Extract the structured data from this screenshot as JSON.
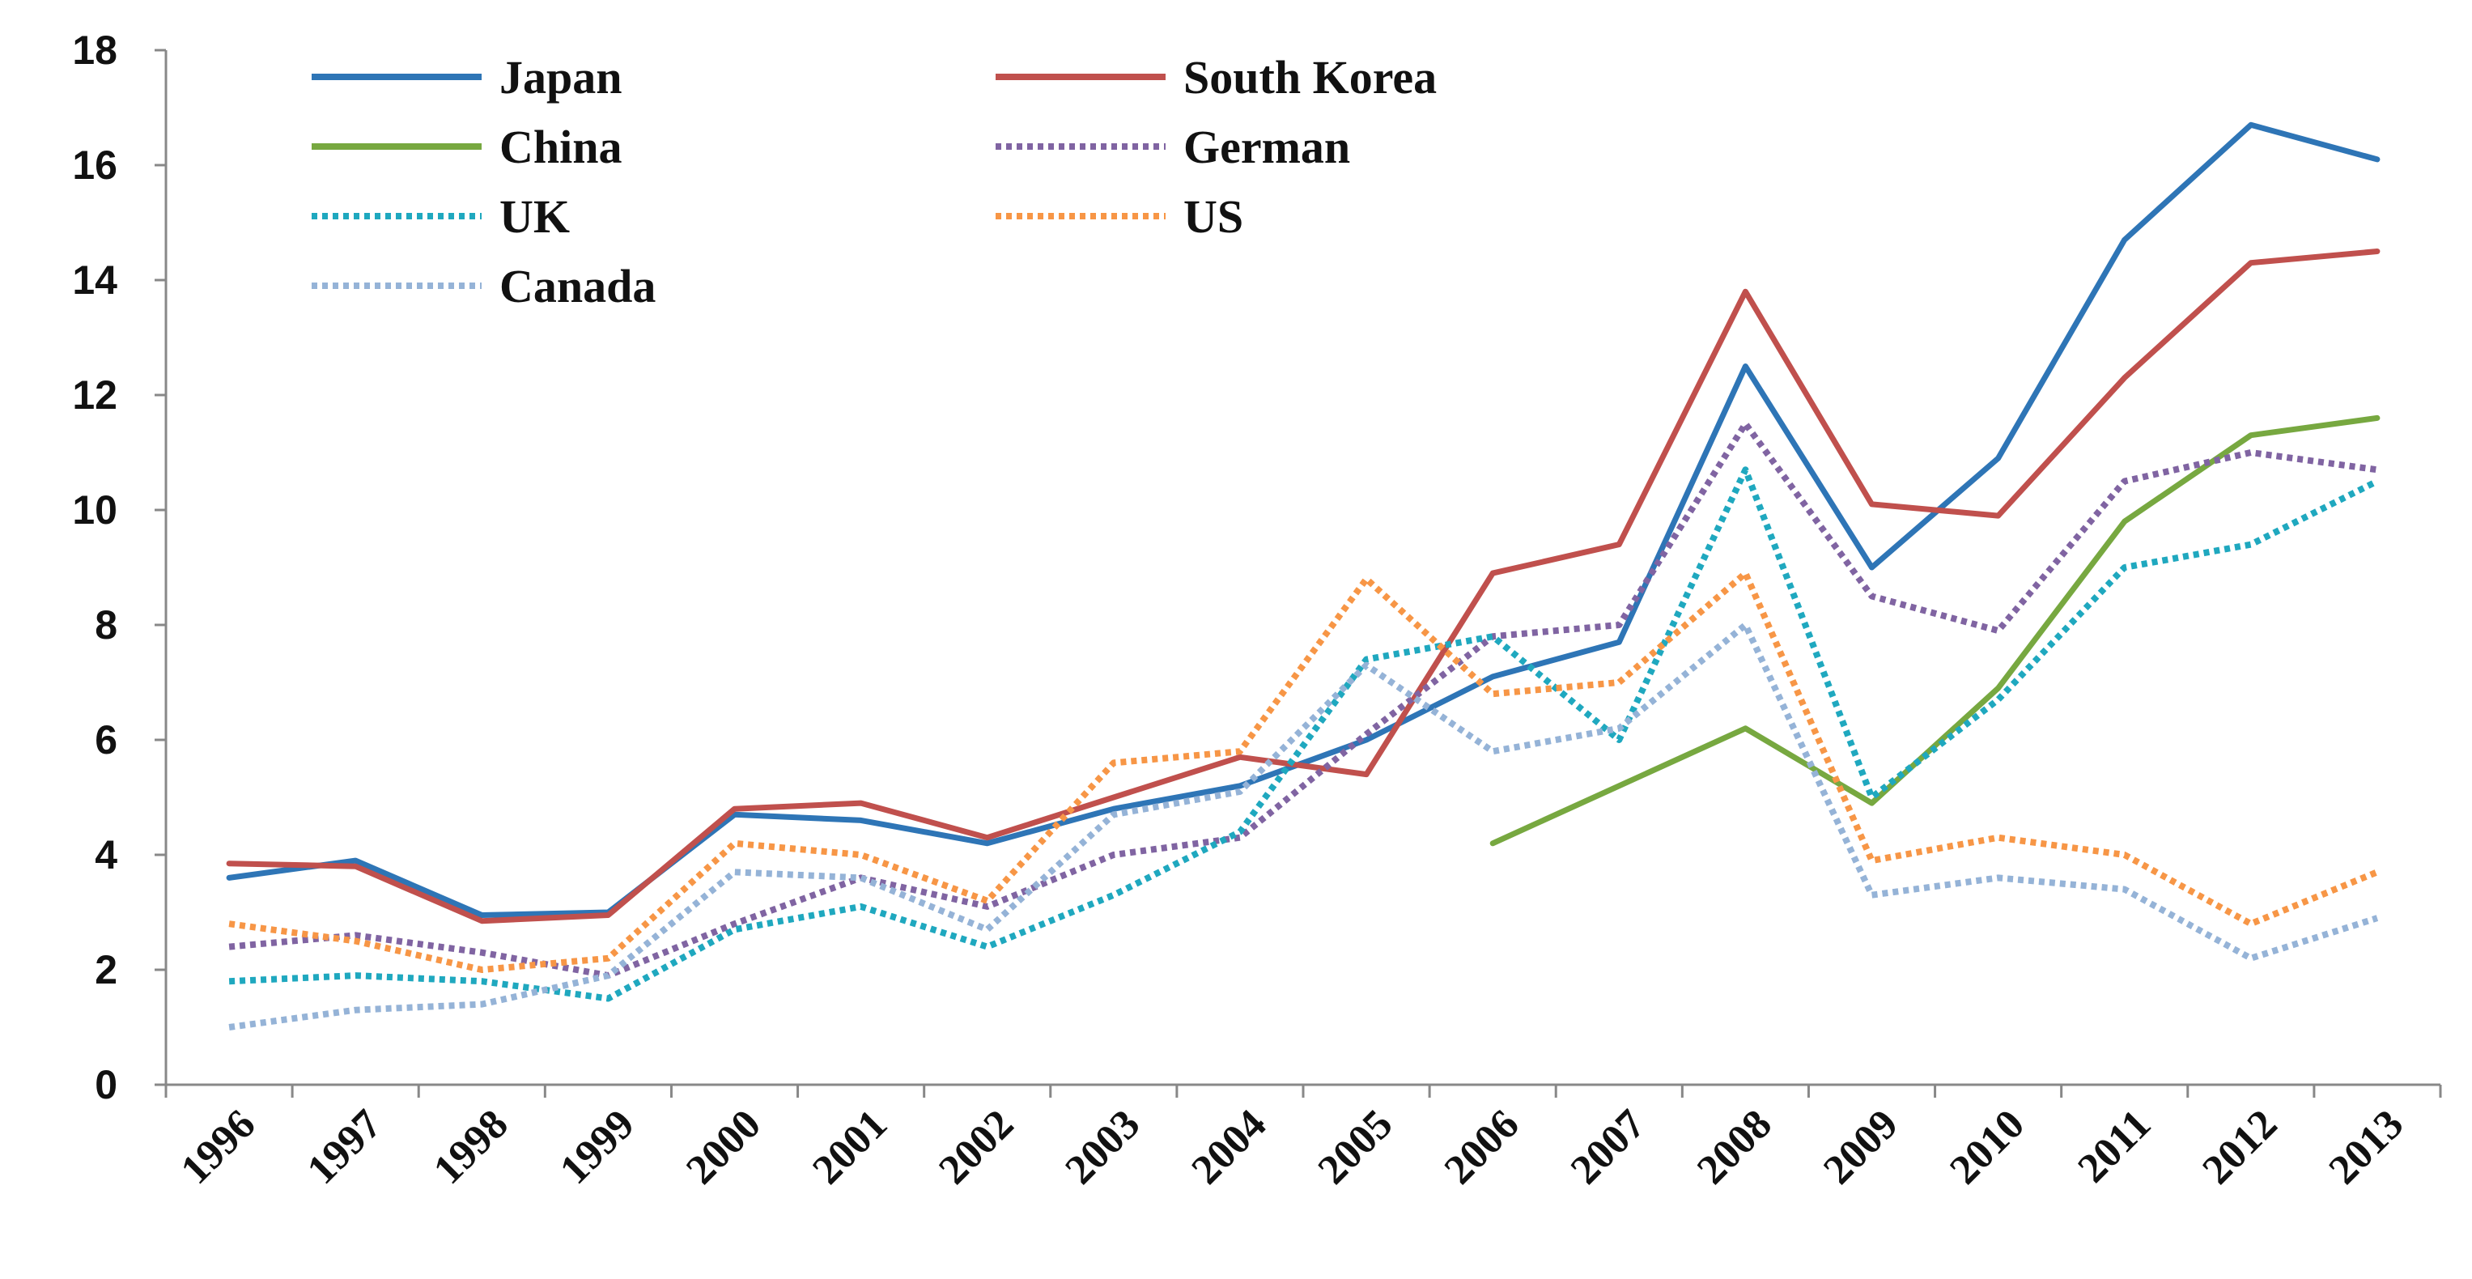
{
  "chart_data": {
    "type": "line",
    "title": "",
    "xlabel": "",
    "ylabel": "",
    "ylim": [
      0,
      18
    ],
    "yticks": [
      0,
      2,
      4,
      6,
      8,
      10,
      12,
      14,
      16,
      18
    ],
    "categories": [
      "1996",
      "1997",
      "1998",
      "1999",
      "2000",
      "2001",
      "2002",
      "2003",
      "2004",
      "2005",
      "2006",
      "2007",
      "2008",
      "2009",
      "2010",
      "2011",
      "2012",
      "2013"
    ],
    "legend_position": "top-left",
    "series": [
      {
        "name": "Japan",
        "color": "#2e75b6",
        "style": "solid",
        "values": [
          3.6,
          3.9,
          2.95,
          3.0,
          4.7,
          4.6,
          4.2,
          4.8,
          5.2,
          6.0,
          7.1,
          7.7,
          12.5,
          9.0,
          10.9,
          14.7,
          16.7,
          16.1
        ]
      },
      {
        "name": "South Korea",
        "color": "#c0504d",
        "style": "solid",
        "values": [
          3.85,
          3.8,
          2.85,
          2.95,
          4.8,
          4.9,
          4.3,
          5.0,
          5.7,
          5.4,
          8.9,
          9.4,
          13.8,
          10.1,
          9.9,
          12.3,
          14.3,
          14.5
        ]
      },
      {
        "name": "China",
        "color": "#77a840",
        "style": "solid",
        "values": [
          null,
          null,
          null,
          null,
          null,
          null,
          null,
          null,
          null,
          null,
          4.2,
          5.2,
          6.2,
          4.9,
          6.9,
          9.8,
          11.3,
          11.6
        ]
      },
      {
        "name": "German",
        "color": "#8064a2",
        "style": "dotted",
        "values": [
          2.4,
          2.6,
          2.3,
          1.9,
          2.8,
          3.6,
          3.1,
          4.0,
          4.3,
          6.1,
          7.8,
          8.0,
          11.5,
          8.5,
          7.9,
          10.5,
          11.0,
          10.7
        ]
      },
      {
        "name": "UK",
        "color": "#1fa8bf",
        "style": "dotted",
        "values": [
          1.8,
          1.9,
          1.8,
          1.5,
          2.7,
          3.1,
          2.4,
          3.3,
          4.4,
          7.4,
          7.8,
          6.0,
          10.7,
          5.0,
          6.7,
          9.0,
          9.4,
          10.5
        ]
      },
      {
        "name": "US",
        "color": "#f79646",
        "style": "dotted",
        "values": [
          2.8,
          2.5,
          2.0,
          2.2,
          4.2,
          4.0,
          3.2,
          5.6,
          5.8,
          8.8,
          6.8,
          7.0,
          8.9,
          3.9,
          4.3,
          4.0,
          2.8,
          3.7
        ]
      },
      {
        "name": "Canada",
        "color": "#95b3d7",
        "style": "dotted",
        "values": [
          1.0,
          1.3,
          1.4,
          1.9,
          3.7,
          3.6,
          2.7,
          4.7,
          5.1,
          7.3,
          5.8,
          6.2,
          8.0,
          3.3,
          3.6,
          3.4,
          2.2,
          2.9
        ]
      }
    ]
  }
}
